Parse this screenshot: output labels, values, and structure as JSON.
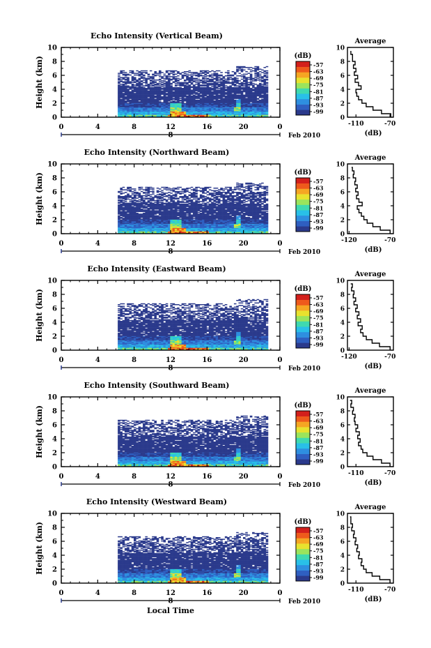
{
  "figure": {
    "xlabel": "Local Time",
    "month_label": "Feb 2010",
    "day_label": "8",
    "colorbar_unit": "(dB)",
    "avg_title": "Average",
    "avg_xlabel": "(dB)",
    "colormap": [
      "#2b3a8c",
      "#2f5fc1",
      "#2e8fe0",
      "#29c0e8",
      "#3fd9b0",
      "#9be45c",
      "#e8e22e",
      "#f5a623",
      "#ee5a1c",
      "#d3201c"
    ]
  },
  "chart_data": [
    {
      "type": "heatmap",
      "title": "Echo Intensity (Vertical Beam)",
      "ylabel": "Height (km)",
      "xlim": [
        0,
        24
      ],
      "ylim": [
        0,
        10
      ],
      "xticks": [
        "0",
        "4",
        "8",
        "12",
        "16",
        "20",
        "0"
      ],
      "yticks": [
        "0",
        "2",
        "4",
        "6",
        "8",
        "10"
      ],
      "data_range_hours": [
        6.2,
        22.7
      ],
      "colorbar_ticks": [
        "-57",
        "-63",
        "-69",
        "-75",
        "-81",
        "-87",
        "-93",
        "-99"
      ],
      "average_profile": {
        "xticks": [
          "-110",
          "-70"
        ],
        "xlim": [
          -120,
          -66
        ],
        "height_km": [
          0,
          0.5,
          1,
          1.5,
          2,
          2.5,
          3,
          3.5,
          4,
          4.5,
          5,
          5.5,
          6,
          6.5,
          7,
          7.5,
          8,
          8.5,
          9,
          9.5
        ],
        "db": [
          -69,
          -80,
          -90,
          -98,
          -103,
          -107,
          -109,
          -110,
          -104,
          -107,
          -111,
          -108,
          -112,
          -110,
          -113,
          -111,
          -114,
          -114,
          -116,
          -116
        ]
      }
    },
    {
      "type": "heatmap",
      "title": "Echo Intensity (Northward Beam)",
      "ylabel": "Height (km)",
      "xlim": [
        0,
        24
      ],
      "ylim": [
        0,
        10
      ],
      "xticks": [
        "0",
        "4",
        "8",
        "12",
        "16",
        "20",
        "0"
      ],
      "yticks": [
        "0",
        "2",
        "4",
        "6",
        "8",
        "10"
      ],
      "data_range_hours": [
        6.2,
        22.7
      ],
      "colorbar_ticks": [
        "-57",
        "-63",
        "-69",
        "-75",
        "-81",
        "-87",
        "-93",
        "-99"
      ],
      "average_profile": {
        "xticks": [
          "-120",
          "-70"
        ],
        "xlim": [
          -122,
          -66
        ],
        "height_km": [
          0,
          0.5,
          1,
          1.5,
          2,
          2.5,
          3,
          3.5,
          4,
          4.5,
          5,
          5.5,
          6,
          6.5,
          7,
          7.5,
          8,
          8.5,
          9,
          9.5
        ],
        "db": [
          -70,
          -82,
          -91,
          -98,
          -102,
          -105,
          -108,
          -110,
          -104,
          -108,
          -111,
          -109,
          -112,
          -110,
          -113,
          -112,
          -115,
          -114,
          -116,
          -117
        ]
      }
    },
    {
      "type": "heatmap",
      "title": "Echo Intensity (Eastward Beam)",
      "ylabel": "Height (km)",
      "xlim": [
        0,
        24
      ],
      "ylim": [
        0,
        10
      ],
      "xticks": [
        "0",
        "4",
        "8",
        "12",
        "16",
        "20",
        "0"
      ],
      "yticks": [
        "0",
        "2",
        "4",
        "6",
        "8",
        "10"
      ],
      "data_range_hours": [
        6.2,
        22.7
      ],
      "colorbar_ticks": [
        "-57",
        "-63",
        "-69",
        "-75",
        "-81",
        "-87",
        "-93",
        "-99"
      ],
      "average_profile": {
        "xticks": [
          "-120",
          "-70"
        ],
        "xlim": [
          -122,
          -66
        ],
        "height_km": [
          0,
          0.5,
          1,
          1.5,
          2,
          2.5,
          3,
          3.5,
          4,
          4.5,
          5,
          5.5,
          6,
          6.5,
          7,
          7.5,
          8,
          8.5,
          9,
          9.5
        ],
        "db": [
          -70,
          -83,
          -92,
          -99,
          -103,
          -106,
          -104,
          -109,
          -106,
          -110,
          -108,
          -112,
          -110,
          -114,
          -112,
          -115,
          -114,
          -117,
          -116,
          -118
        ]
      }
    },
    {
      "type": "heatmap",
      "title": "Echo Intensity (Southward Beam)",
      "ylabel": "Height (km)",
      "xlim": [
        0,
        24
      ],
      "ylim": [
        0,
        10
      ],
      "xticks": [
        "0",
        "4",
        "8",
        "12",
        "16",
        "20",
        "0"
      ],
      "yticks": [
        "0",
        "2",
        "4",
        "6",
        "8",
        "10"
      ],
      "data_range_hours": [
        6.2,
        22.7
      ],
      "colorbar_ticks": [
        "-57",
        "-63",
        "-69",
        "-75",
        "-81",
        "-87",
        "-93",
        "-99"
      ],
      "average_profile": {
        "xticks": [
          "-110",
          "-70"
        ],
        "xlim": [
          -120,
          -66
        ],
        "height_km": [
          0,
          0.5,
          1,
          1.5,
          2,
          2.5,
          3,
          3.5,
          4,
          4.5,
          5,
          5.5,
          6,
          6.5,
          7,
          7.5,
          8,
          8.5,
          9,
          9.5
        ],
        "db": [
          -70,
          -80,
          -90,
          -97,
          -102,
          -104,
          -107,
          -105,
          -108,
          -106,
          -110,
          -108,
          -111,
          -112,
          -111,
          -114,
          -113,
          -116,
          -115,
          -117
        ]
      }
    },
    {
      "type": "heatmap",
      "title": "Echo Intensity (Westward Beam)",
      "ylabel": "Height (km)",
      "xlim": [
        0,
        24
      ],
      "ylim": [
        0,
        10
      ],
      "xticks": [
        "0",
        "4",
        "8",
        "12",
        "16",
        "20",
        "0"
      ],
      "yticks": [
        "0",
        "2",
        "4",
        "6",
        "8",
        "10"
      ],
      "data_range_hours": [
        6.2,
        22.7
      ],
      "colorbar_ticks": [
        "-57",
        "-63",
        "-69",
        "-75",
        "-81",
        "-87",
        "-93",
        "-99"
      ],
      "average_profile": {
        "xticks": [
          "-110",
          "-70"
        ],
        "xlim": [
          -120,
          -66
        ],
        "height_km": [
          0,
          0.5,
          1,
          1.5,
          2,
          2.5,
          3,
          3.5,
          4,
          4.5,
          5,
          5.5,
          6,
          6.5,
          7,
          7.5,
          8,
          8.5,
          9,
          9.5
        ],
        "db": [
          -70,
          -82,
          -91,
          -98,
          -101,
          -104,
          -103,
          -107,
          -106,
          -109,
          -108,
          -111,
          -110,
          -113,
          -112,
          -115,
          -114,
          -116,
          -116,
          -117
        ]
      }
    }
  ]
}
